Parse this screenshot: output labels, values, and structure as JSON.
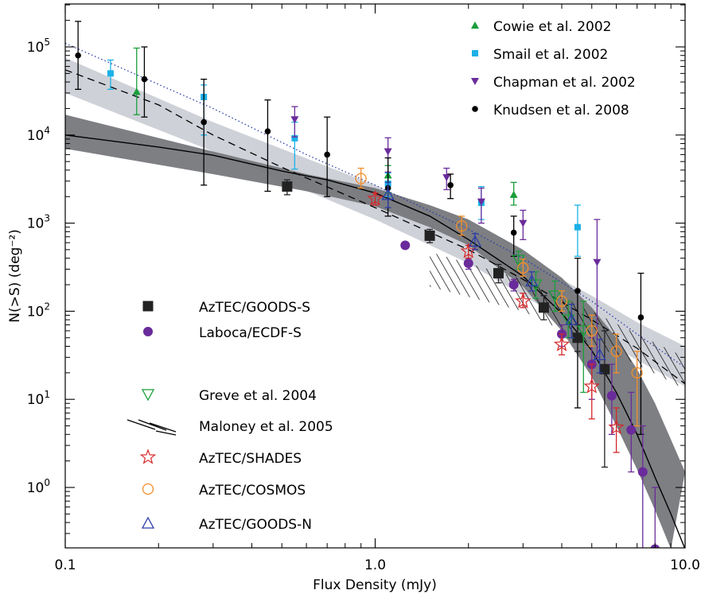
{
  "chart_data": {
    "type": "scatter",
    "title": "",
    "xlabel": "Flux Density (mJy)",
    "ylabel": "N(>S) (deg⁻²)",
    "x_scale": "log",
    "y_scale": "log",
    "xlim": [
      0.1,
      10.0
    ],
    "ylim": [
      0.2,
      300000
    ],
    "x_ticks": [
      {
        "value": 0.1,
        "label": "0.1"
      },
      {
        "value": 1.0,
        "label": "1.0"
      },
      {
        "value": 10.0,
        "label": "10.0"
      }
    ],
    "y_ticks": [
      {
        "value": 1,
        "base": "10",
        "exp": "0"
      },
      {
        "value": 10,
        "base": "10",
        "exp": "1"
      },
      {
        "value": 100,
        "base": "10",
        "exp": "2"
      },
      {
        "value": 1000,
        "base": "10",
        "exp": "3"
      },
      {
        "value": 10000,
        "base": "10",
        "exp": "4"
      },
      {
        "value": 100000,
        "base": "10",
        "exp": "5"
      }
    ],
    "grid": false,
    "series": [
      {
        "name": "Cowie et al. 2002",
        "marker": "triangle-up",
        "color": "#1a9e3a",
        "points": [
          [
            0.17,
            31000,
            17000,
            97000
          ],
          [
            1.1,
            3500,
            2200,
            4500
          ],
          [
            2.8,
            2100,
            1600,
            2900
          ]
        ]
      },
      {
        "name": "Smail et al. 2002",
        "marker": "square",
        "color": "#1bb1e6",
        "points": [
          [
            0.14,
            50000,
            33000,
            71000
          ],
          [
            0.28,
            27000,
            10000,
            37000
          ],
          [
            0.55,
            9200,
            4100,
            14000
          ],
          [
            1.1,
            2800,
            2000,
            3700
          ],
          [
            2.2,
            1700,
            1100,
            2600
          ],
          [
            4.5,
            900,
            420,
            1600
          ]
        ]
      },
      {
        "name": "Chapman et al. 2002",
        "marker": "triangle-down",
        "color": "#6a2b9b",
        "points": [
          [
            0.55,
            15000,
            9500,
            21000
          ],
          [
            1.1,
            6500,
            3800,
            9300
          ],
          [
            1.7,
            3300,
            2400,
            4200
          ],
          [
            2.2,
            1750,
            1000,
            2500
          ],
          [
            3.0,
            1000,
            650,
            1400
          ],
          [
            5.2,
            360,
            30,
            1100
          ]
        ]
      },
      {
        "name": "Knudsen et al. 2008",
        "marker": "circle",
        "color": "#000000",
        "points": [
          [
            0.11,
            80000,
            33000,
            195000
          ],
          [
            0.18,
            43000,
            16000,
            100000
          ],
          [
            0.28,
            14000,
            2700,
            43000
          ],
          [
            0.45,
            11000,
            2300,
            25000
          ],
          [
            0.7,
            6000,
            2000,
            16000
          ],
          [
            1.1,
            2500,
            1200,
            5500
          ],
          [
            1.75,
            2700,
            1900,
            3600
          ],
          [
            2.8,
            780,
            420,
            1200
          ],
          [
            4.5,
            170,
            8,
            400
          ],
          [
            7.2,
            85,
            4,
            270
          ]
        ]
      },
      {
        "name": "AzTEC/GOODS-S",
        "marker": "square-filled-large",
        "color": "#222222",
        "legend": true,
        "points": [
          [
            0.52,
            2600,
            2100,
            3100
          ],
          [
            1.5,
            720,
            600,
            850
          ],
          [
            2.5,
            270,
            210,
            340
          ],
          [
            3.5,
            110,
            80,
            150
          ],
          [
            4.5,
            50,
            35,
            70
          ],
          [
            5.5,
            22,
            1.7,
            60
          ]
        ]
      },
      {
        "name": "Laboca/ECDF-S",
        "marker": "circle-filled",
        "color": "#6a2b9b",
        "legend": true,
        "points": [
          [
            1.25,
            560,
            520,
            600
          ],
          [
            2.0,
            350,
            300,
            400
          ],
          [
            2.8,
            200,
            170,
            230
          ],
          [
            4.0,
            55,
            40,
            70
          ],
          [
            5.0,
            25,
            10,
            50
          ],
          [
            5.8,
            11,
            4,
            25
          ],
          [
            6.7,
            4.5,
            1.5,
            12
          ],
          [
            7.3,
            1.5,
            0.2,
            5
          ],
          [
            8.0,
            0.2,
            0.2,
            1
          ]
        ]
      },
      {
        "name": "Greve et al. 2004",
        "marker": "triangle-down-open",
        "color": "#1a9e3a",
        "legend": true,
        "points": [
          [
            2.9,
            380,
            300,
            480
          ],
          [
            3.3,
            200,
            140,
            280
          ],
          [
            3.8,
            150,
            100,
            220
          ],
          [
            4.2,
            80,
            50,
            130
          ],
          [
            4.7,
            60,
            12,
            130
          ]
        ]
      },
      {
        "name": "AzTEC/SHADES",
        "marker": "star-open",
        "color": "#d62728",
        "legend": true,
        "points": [
          [
            1.0,
            1900,
            1600,
            2200
          ],
          [
            2.0,
            480,
            400,
            560
          ],
          [
            3.0,
            130,
            110,
            160
          ],
          [
            4.0,
            42,
            32,
            55
          ],
          [
            5.0,
            14,
            6,
            25
          ],
          [
            6.0,
            4.8,
            2.5,
            8
          ]
        ]
      },
      {
        "name": "AzTEC/COSMOS",
        "marker": "circle-open",
        "color": "#f28e2b",
        "legend": true,
        "points": [
          [
            0.9,
            3200,
            2500,
            4200
          ],
          [
            1.9,
            930,
            730,
            1200
          ],
          [
            3.0,
            310,
            250,
            390
          ],
          [
            4.0,
            130,
            100,
            170
          ],
          [
            5.0,
            60,
            40,
            90
          ],
          [
            6.0,
            35,
            20,
            55
          ],
          [
            7.0,
            20,
            5,
            35
          ]
        ]
      },
      {
        "name": "AzTEC/GOODS-N",
        "marker": "triangle-up-open",
        "color": "#2b3da8",
        "legend": true,
        "points": [
          [
            1.1,
            2100,
            1500,
            2900
          ],
          [
            2.1,
            620,
            500,
            760
          ],
          [
            3.2,
            220,
            170,
            280
          ],
          [
            4.3,
            80,
            50,
            120
          ],
          [
            5.3,
            32,
            20,
            48
          ]
        ]
      }
    ],
    "legend_top": [
      "Cowie et al. 2002",
      "Smail et al. 2002",
      "Chapman et al. 2002",
      "Knudsen et al. 2008"
    ],
    "legend_bottom": [
      "AzTEC/GOODS-S",
      "Laboca/ECDF-S",
      "Greve et al. 2004",
      "Maloney et al. 2005",
      "AzTEC/SHADES",
      "AzTEC/COSMOS",
      "AzTEC/GOODS-N"
    ],
    "hatched_band_name": "Maloney et al. 2005",
    "dark_band": {
      "lower": [
        [
          0.1,
          7000
        ],
        [
          0.3,
          3600
        ],
        [
          0.6,
          2300
        ],
        [
          1.0,
          1550
        ],
        [
          1.5,
          900
        ],
        [
          2.0,
          560
        ],
        [
          3.0,
          190
        ],
        [
          4.0,
          60
        ],
        [
          5.0,
          18
        ],
        [
          6.0,
          5
        ],
        [
          7.0,
          1.6
        ],
        [
          8.0,
          0.55
        ],
        [
          9.0,
          0.2
        ]
      ],
      "upper": [
        [
          0.1,
          17000
        ],
        [
          0.3,
          6500
        ],
        [
          0.6,
          3600
        ],
        [
          1.0,
          2500
        ],
        [
          1.5,
          1600
        ],
        [
          2.0,
          1100
        ],
        [
          3.0,
          500
        ],
        [
          4.0,
          240
        ],
        [
          5.0,
          110
        ],
        [
          6.0,
          50
        ],
        [
          7.0,
          22
        ],
        [
          8.0,
          9
        ],
        [
          9.0,
          3.5
        ],
        [
          10.0,
          1.5
        ]
      ]
    },
    "light_band": {
      "lower": [
        [
          0.1,
          30000
        ],
        [
          0.3,
          6500
        ],
        [
          1.0,
          1100
        ],
        [
          2.0,
          350
        ],
        [
          3.0,
          150
        ],
        [
          5.0,
          55
        ],
        [
          7.0,
          28
        ],
        [
          10.0,
          14
        ]
      ],
      "upper": [
        [
          0.1,
          75000
        ],
        [
          0.3,
          14000
        ],
        [
          1.0,
          2700
        ],
        [
          2.0,
          900
        ],
        [
          3.0,
          400
        ],
        [
          5.0,
          150
        ],
        [
          7.0,
          75
        ],
        [
          10.0,
          40
        ]
      ]
    },
    "hatched_band": {
      "lower": [
        [
          1.5,
          190
        ],
        [
          3.0,
          100
        ],
        [
          5.0,
          42
        ],
        [
          7.0,
          25
        ],
        [
          10.0,
          13
        ]
      ],
      "upper": [
        [
          1.5,
          470
        ],
        [
          3.0,
          230
        ],
        [
          5.0,
          100
        ],
        [
          7.0,
          55
        ],
        [
          10.0,
          30
        ]
      ]
    },
    "solid_curve": [
      [
        0.1,
        10000
      ],
      [
        0.2,
        7300
      ],
      [
        0.3,
        5900
      ],
      [
        0.5,
        3900
      ],
      [
        0.7,
        3100
      ],
      [
        1.0,
        2200
      ],
      [
        1.5,
        1200
      ],
      [
        2.0,
        650
      ],
      [
        3.0,
        250
      ],
      [
        4.0,
        95
      ],
      [
        5.0,
        36
      ],
      [
        6.0,
        12
      ],
      [
        7.0,
        4
      ],
      [
        8.0,
        1.3
      ],
      [
        9.0,
        0.5
      ],
      [
        10.0,
        0.2
      ]
    ],
    "dashed_curve": [
      [
        0.1,
        55000
      ],
      [
        0.2,
        22000
      ],
      [
        0.3,
        10000
      ],
      [
        0.5,
        4300
      ],
      [
        1.0,
        1500
      ],
      [
        2.0,
        500
      ],
      [
        3.0,
        230
      ],
      [
        5.0,
        80
      ],
      [
        7.0,
        38
      ],
      [
        10.0,
        15
      ]
    ],
    "dotted_curve": [
      [
        0.1,
        110000
      ],
      [
        0.3,
        20000
      ],
      [
        0.6,
        6000
      ],
      [
        1.0,
        2700
      ],
      [
        2.0,
        850
      ],
      [
        3.0,
        400
      ],
      [
        5.0,
        130
      ],
      [
        7.0,
        55
      ],
      [
        10.0,
        23
      ]
    ]
  }
}
